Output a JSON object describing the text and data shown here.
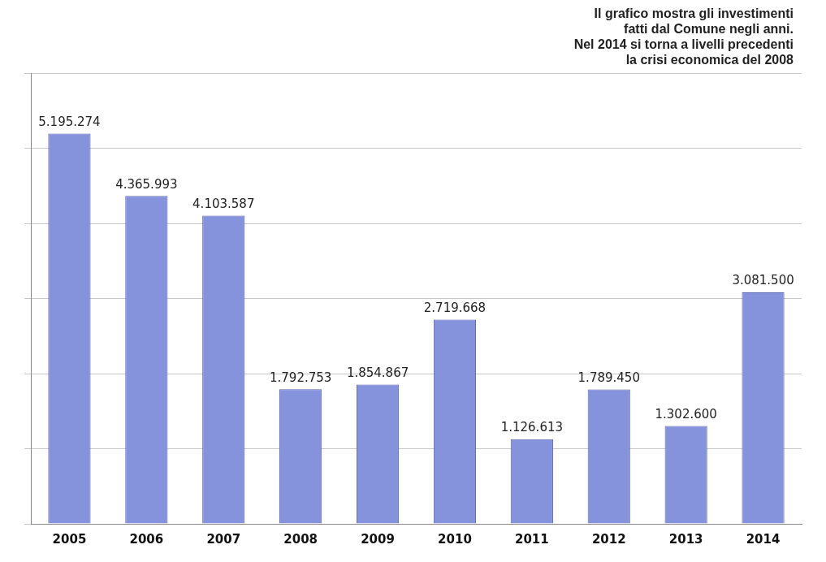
{
  "chart_data": {
    "type": "bar",
    "categories": [
      "2005",
      "2006",
      "2007",
      "2008",
      "2009",
      "2010",
      "2011",
      "2012",
      "2013",
      "2014"
    ],
    "values": [
      5195274,
      4365993,
      4103587,
      1792753,
      1854867,
      2719668,
      1126613,
      1789450,
      1302600,
      3081500
    ],
    "value_labels": [
      "5.195.274",
      "4.365.993",
      "4.103.587",
      "1.792.753",
      "1.854.867",
      "2.719.668",
      "1.126.613",
      "1.789.450",
      "1.302.600",
      "3.081.500"
    ],
    "color": "#8593dc",
    "ylim": [
      0,
      6000000
    ],
    "yticks": [
      {
        "value": 0,
        "label": null
      },
      {
        "value": 1000000,
        "label": null
      },
      {
        "value": 2000000,
        "label": null
      },
      {
        "value": 3000000,
        "label": null
      },
      {
        "value": 4000000,
        "label": null
      },
      {
        "value": 5000000,
        "label": null
      },
      {
        "value": 6000000,
        "label": null
      }
    ],
    "grid": "y",
    "tick_labels": "x",
    "annotations": [
      "Il grafico mostra gli investimenti\nfatti dal Comune negli anni.\nNel 2014 si torna a livelli precedenti\nla crisi economica del 2008"
    ]
  }
}
